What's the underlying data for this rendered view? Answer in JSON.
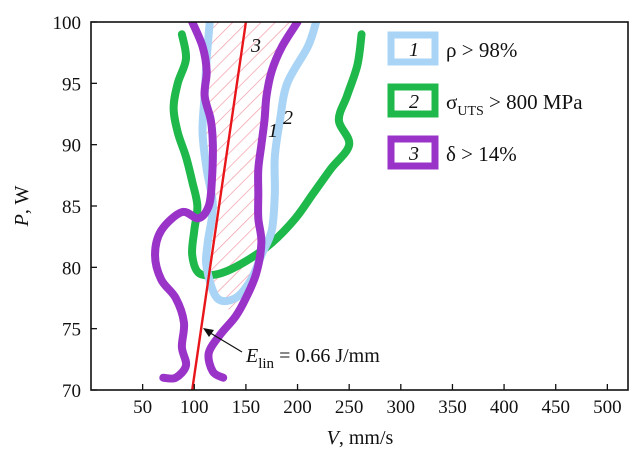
{
  "chart_data": {
    "type": "line",
    "xlabel": "V, mm/s",
    "ylabel": "P, W",
    "xlabel_main": "V",
    "xlabel_unit": ", mm/s",
    "ylabel_main": "P",
    "ylabel_unit": ", W",
    "xlim": [
      0,
      520
    ],
    "ylim": [
      70,
      100
    ],
    "xticks": [
      50,
      100,
      150,
      200,
      250,
      300,
      350,
      400,
      450,
      500
    ],
    "yticks": [
      70,
      75,
      80,
      85,
      90,
      95,
      100
    ],
    "grid": false,
    "legend_position": "top-right",
    "series": [
      {
        "name": "ρ > 98%",
        "label": "1",
        "color": "#a9d4f5",
        "points": [
          [
            115,
            100
          ],
          [
            112,
            97
          ],
          [
            110,
            94
          ],
          [
            108,
            91
          ],
          [
            112,
            88
          ],
          [
            118,
            85
          ],
          [
            113,
            82
          ],
          [
            112,
            80
          ],
          [
            122,
            77.5
          ],
          [
            140,
            77.5
          ],
          [
            155,
            79
          ],
          [
            165,
            81
          ],
          [
            175,
            83
          ],
          [
            178,
            86
          ],
          [
            178,
            89
          ],
          [
            183,
            92
          ],
          [
            190,
            95
          ],
          [
            210,
            98
          ],
          [
            218,
            100
          ]
        ]
      },
      {
        "name": "σUTS > 800 MPa",
        "label": "2",
        "color": "#1fb84a",
        "points": [
          [
            88,
            99
          ],
          [
            92,
            97
          ],
          [
            84,
            95
          ],
          [
            80,
            93
          ],
          [
            84,
            91
          ],
          [
            92,
            89
          ],
          [
            98,
            87
          ],
          [
            103,
            85
          ],
          [
            100,
            83
          ],
          [
            98,
            81
          ],
          [
            105,
            79.5
          ],
          [
            125,
            79.5
          ],
          [
            150,
            80.5
          ],
          [
            175,
            82
          ],
          [
            198,
            84
          ],
          [
            215,
            86
          ],
          [
            232,
            88
          ],
          [
            250,
            90
          ],
          [
            240,
            92
          ],
          [
            248,
            94
          ],
          [
            258,
            96.5
          ],
          [
            262,
            99
          ]
        ]
      },
      {
        "name": "δ > 14%",
        "label": "3",
        "color": "#9a34c8",
        "points": [
          [
            98,
            100
          ],
          [
            108,
            98
          ],
          [
            112,
            96
          ],
          [
            110,
            94
          ],
          [
            116,
            92
          ],
          [
            118,
            90
          ],
          [
            117,
            87
          ],
          [
            114,
            85
          ],
          [
            104,
            84
          ],
          [
            88,
            84.5
          ],
          [
            68,
            83
          ],
          [
            62,
            81
          ],
          [
            68,
            79
          ],
          [
            82,
            77.5
          ],
          [
            90,
            75.5
          ],
          [
            88,
            73.5
          ],
          [
            92,
            72
          ],
          [
            82,
            71
          ],
          [
            70,
            71
          ]
        ]
      },
      {
        "name": "δ > 14%",
        "label": "3",
        "color": "#9a34c8",
        "points": [
          [
            200,
            100
          ],
          [
            185,
            98
          ],
          [
            175,
            96
          ],
          [
            170,
            94
          ],
          [
            168,
            92
          ],
          [
            165,
            90
          ],
          [
            162,
            88
          ],
          [
            162,
            86
          ],
          [
            162,
            84
          ],
          [
            165,
            82
          ],
          [
            160,
            79.5
          ],
          [
            150,
            77.5
          ],
          [
            140,
            76
          ],
          [
            125,
            74.5
          ],
          [
            114,
            73
          ],
          [
            118,
            71.5
          ],
          [
            128,
            71
          ]
        ]
      },
      {
        "name": "E_lin = 0.66 J/mm",
        "color": "#e8161b",
        "points": [
          [
            98,
            70
          ],
          [
            150,
            100
          ]
        ]
      }
    ],
    "legend": [
      {
        "num": "1",
        "text": "ρ > 98%"
      },
      {
        "num": "2",
        "text": "σ",
        "sub": "UTS",
        "text2": " > 800 MPa"
      },
      {
        "num": "3",
        "text": "δ > 14%"
      }
    ],
    "curve_labels": [
      "1",
      "2",
      "3"
    ],
    "annotation": {
      "text_main": "E",
      "text_sub": "lin",
      "text_rest": " = 0.66 J/mm"
    },
    "hatch_region": {
      "color": "#f39aa8",
      "polygon": [
        [
          115,
          100
        ],
        [
          200,
          100
        ],
        [
          185,
          98
        ],
        [
          175,
          96
        ],
        [
          170,
          94
        ],
        [
          168,
          92
        ],
        [
          165,
          90
        ],
        [
          162,
          88
        ],
        [
          162,
          86
        ],
        [
          162,
          84
        ],
        [
          165,
          82
        ],
        [
          160,
          79.5
        ],
        [
          150,
          77.5
        ],
        [
          140,
          76
        ],
        [
          122,
          77.5
        ],
        [
          112,
          80
        ],
        [
          113,
          82
        ],
        [
          118,
          85
        ],
        [
          112,
          88
        ],
        [
          108,
          91
        ],
        [
          110,
          94
        ],
        [
          112,
          97
        ]
      ]
    }
  }
}
